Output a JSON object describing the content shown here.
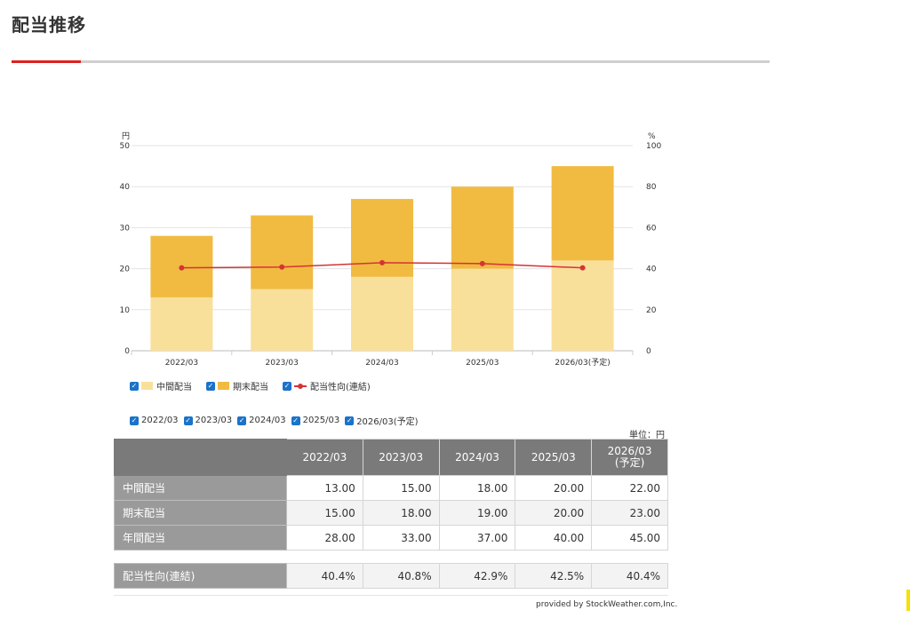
{
  "page": {
    "title": "配当推移"
  },
  "chart_data": {
    "type": "bar",
    "stacked": true,
    "categories": [
      "2022/03",
      "2023/03",
      "2024/03",
      "2025/03",
      "2026/03(予定)"
    ],
    "series": [
      {
        "name": "中間配当",
        "type": "bar",
        "axis": "left",
        "color": "#f9e09a",
        "values": [
          13,
          15,
          18,
          20,
          22
        ]
      },
      {
        "name": "期末配当",
        "type": "bar",
        "axis": "left",
        "color": "#f1bb42",
        "values": [
          15,
          18,
          19,
          20,
          23
        ]
      },
      {
        "name": "配当性向(連結)",
        "type": "line",
        "axis": "right",
        "color": "#d43434",
        "values": [
          40.4,
          40.8,
          42.9,
          42.5,
          40.4
        ]
      }
    ],
    "y_left": {
      "unit": "円",
      "ylim": [
        0,
        50
      ],
      "ticks": [
        0,
        10,
        20,
        30,
        40,
        50
      ]
    },
    "y_right": {
      "unit": "%",
      "ylim": [
        0,
        100
      ],
      "ticks": [
        0,
        20,
        40,
        60,
        80,
        100
      ]
    },
    "grid": true,
    "legend": "bottom-left"
  },
  "legend": {
    "interim": "中間配当",
    "year_end": "期末配当",
    "payout": "配当性向(連結)",
    "years": [
      "2022/03",
      "2023/03",
      "2024/03",
      "2025/03",
      "2026/03(予定)"
    ]
  },
  "table": {
    "unit": "単位：円",
    "columns": [
      {
        "line1": "2022/03",
        "line2": ""
      },
      {
        "line1": "2023/03",
        "line2": ""
      },
      {
        "line1": "2024/03",
        "line2": ""
      },
      {
        "line1": "2025/03",
        "line2": ""
      },
      {
        "line1": "2026/03",
        "line2": "(予定)"
      }
    ],
    "rows": [
      {
        "label": "中間配当",
        "values": [
          "13.00",
          "15.00",
          "18.00",
          "20.00",
          "22.00"
        ]
      },
      {
        "label": "期末配当",
        "values": [
          "15.00",
          "18.00",
          "19.00",
          "20.00",
          "23.00"
        ]
      },
      {
        "label": "年間配当",
        "values": [
          "28.00",
          "33.00",
          "37.00",
          "40.00",
          "45.00"
        ]
      }
    ],
    "ratio_row": {
      "label": "配当性向(連結)",
      "values": [
        "40.4%",
        "40.8%",
        "42.9%",
        "42.5%",
        "40.4%"
      ]
    }
  },
  "footer": {
    "credit": "provided by StockWeather.com,Inc."
  }
}
